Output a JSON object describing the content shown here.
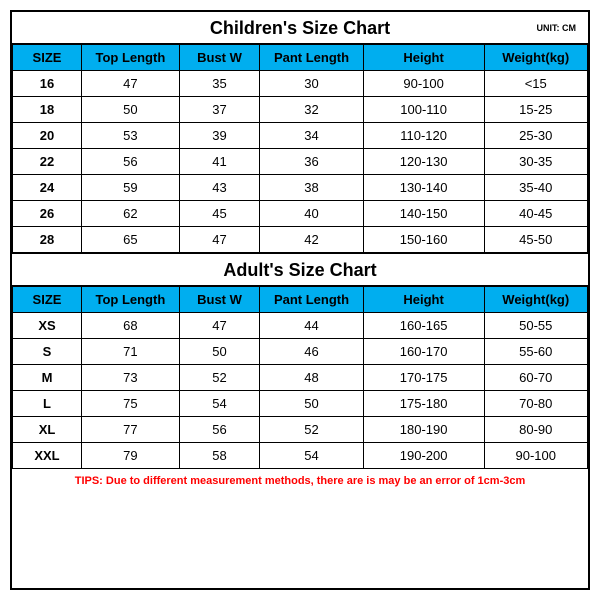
{
  "colors": {
    "header_bg": "#00aeef",
    "border": "#000000",
    "text": "#000000",
    "tips": "#ff0000",
    "background": "#ffffff"
  },
  "typography": {
    "title_fontsize": 18,
    "cell_fontsize": 13,
    "unit_fontsize": 9,
    "tips_fontsize": 11,
    "font_family": "Arial, sans-serif"
  },
  "children": {
    "title": "Children's Size Chart",
    "unit": "UNIT: CM",
    "columns": [
      "SIZE",
      "Top Length",
      "Bust W",
      "Pant Length",
      "Height",
      "Weight(kg)"
    ],
    "column_widths_pct": [
      12,
      17,
      14,
      18,
      21,
      18
    ],
    "rows": [
      [
        "16",
        "47",
        "35",
        "30",
        "90-100",
        "<15"
      ],
      [
        "18",
        "50",
        "37",
        "32",
        "100-110",
        "15-25"
      ],
      [
        "20",
        "53",
        "39",
        "34",
        "110-120",
        "25-30"
      ],
      [
        "22",
        "56",
        "41",
        "36",
        "120-130",
        "30-35"
      ],
      [
        "24",
        "59",
        "43",
        "38",
        "130-140",
        "35-40"
      ],
      [
        "26",
        "62",
        "45",
        "40",
        "140-150",
        "40-45"
      ],
      [
        "28",
        "65",
        "47",
        "42",
        "150-160",
        "45-50"
      ]
    ]
  },
  "adult": {
    "title": "Adult's Size Chart",
    "columns": [
      "SIZE",
      "Top Length",
      "Bust W",
      "Pant Length",
      "Height",
      "Weight(kg)"
    ],
    "column_widths_pct": [
      12,
      17,
      14,
      18,
      21,
      18
    ],
    "rows": [
      [
        "XS",
        "68",
        "47",
        "44",
        "160-165",
        "50-55"
      ],
      [
        "S",
        "71",
        "50",
        "46",
        "160-170",
        "55-60"
      ],
      [
        "M",
        "73",
        "52",
        "48",
        "170-175",
        "60-70"
      ],
      [
        "L",
        "75",
        "54",
        "50",
        "175-180",
        "70-80"
      ],
      [
        "XL",
        "77",
        "56",
        "52",
        "180-190",
        "80-90"
      ],
      [
        "XXL",
        "79",
        "58",
        "54",
        "190-200",
        "90-100"
      ]
    ]
  },
  "tips": "TIPS: Due to different measurement methods, there are is may be an error of 1cm-3cm"
}
